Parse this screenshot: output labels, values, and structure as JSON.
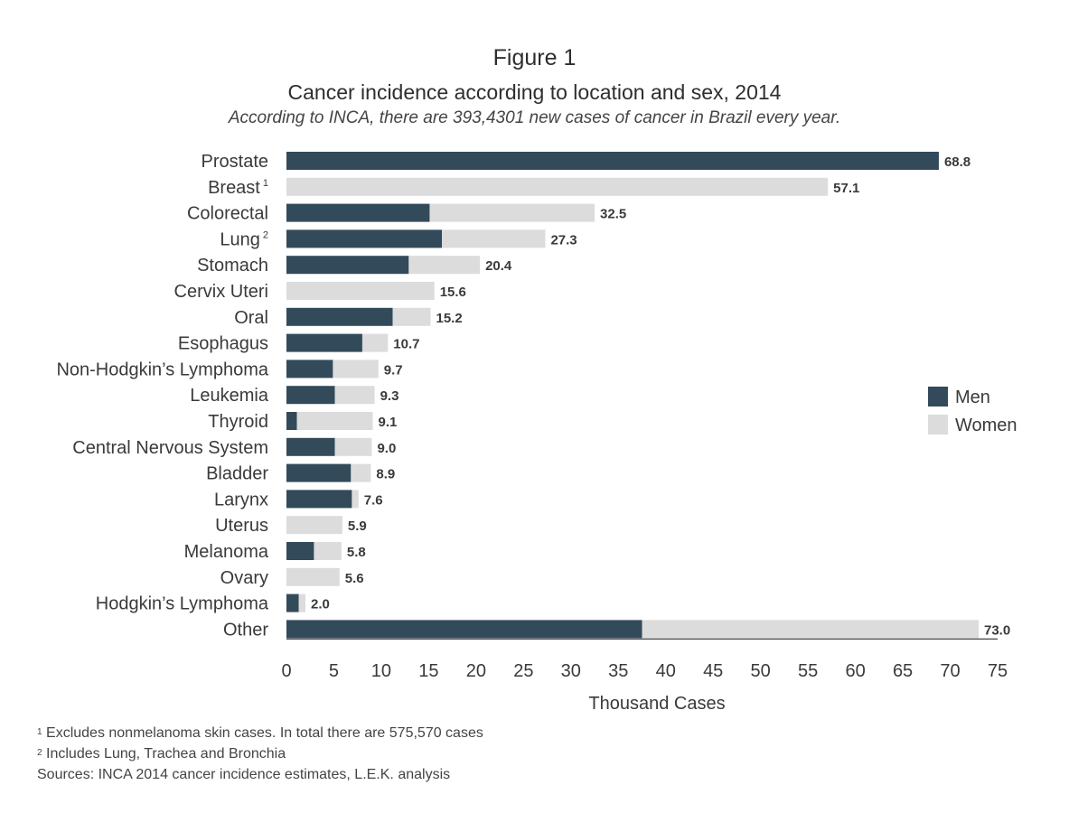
{
  "figure_label": "Figure 1",
  "chart_data": {
    "type": "bar",
    "orientation": "horizontal",
    "stacked": true,
    "title": "Cancer incidence according to location and sex, 2014",
    "subtitle": "According to INCA, there are 393,4301 new cases of cancer in Brazil every year.",
    "xlabel": "Thousand Cases",
    "ylabel": "",
    "xlim": [
      0,
      75
    ],
    "xticks": [
      0,
      5,
      10,
      15,
      20,
      25,
      30,
      35,
      40,
      45,
      50,
      55,
      60,
      65,
      70,
      75
    ],
    "grid": false,
    "legend_position": "right",
    "categories": [
      {
        "name": "Prostate",
        "sup": ""
      },
      {
        "name": "Breast",
        "sup": "1"
      },
      {
        "name": "Colorectal",
        "sup": ""
      },
      {
        "name": "Lung",
        "sup": "2"
      },
      {
        "name": "Stomach",
        "sup": ""
      },
      {
        "name": "Cervix Uteri",
        "sup": ""
      },
      {
        "name": "Oral",
        "sup": ""
      },
      {
        "name": "Esophagus",
        "sup": ""
      },
      {
        "name": "Non-Hodgkin’s Lymphoma",
        "sup": ""
      },
      {
        "name": "Leukemia",
        "sup": ""
      },
      {
        "name": "Thyroid",
        "sup": ""
      },
      {
        "name": "Central Nervous System",
        "sup": ""
      },
      {
        "name": "Bladder",
        "sup": ""
      },
      {
        "name": "Larynx",
        "sup": ""
      },
      {
        "name": "Uterus",
        "sup": ""
      },
      {
        "name": "Melanoma",
        "sup": ""
      },
      {
        "name": "Ovary",
        "sup": ""
      },
      {
        "name": "Hodgkin’s Lymphoma",
        "sup": ""
      },
      {
        "name": "Other",
        "sup": ""
      }
    ],
    "series": [
      {
        "name": "Men",
        "color": "#334a5a",
        "values": [
          68.8,
          0,
          15.1,
          16.4,
          12.9,
          0,
          11.2,
          8.0,
          4.9,
          5.1,
          1.1,
          5.1,
          6.8,
          6.9,
          0,
          2.9,
          0,
          1.3,
          37.5
        ]
      },
      {
        "name": "Women",
        "color": "#dcdcdc",
        "values": [
          0,
          57.1,
          17.4,
          10.9,
          7.5,
          15.6,
          4.0,
          2.7,
          4.8,
          4.2,
          8.0,
          3.9,
          2.1,
          0.7,
          5.9,
          2.9,
          5.6,
          0.7,
          35.5
        ]
      }
    ],
    "totals": [
      "68.8",
      "57.1",
      "32.5",
      "27.3",
      "20.4",
      "15.6",
      "15.2",
      "10.7",
      "9.7",
      "9.3",
      "9.1",
      "9.0",
      "8.9",
      "7.6",
      "5.9",
      "5.8",
      "5.6",
      "2.0",
      "73.0"
    ]
  },
  "footnotes": [
    {
      "sup": "1",
      "text": "Excludes nonmelanoma skin cases. In total there are 575,570 cases"
    },
    {
      "sup": "2",
      "text": "Includes Lung, Trachea and Bronchia"
    },
    {
      "sup": "",
      "text": "Sources: INCA 2014 cancer incidence estimates, L.E.K. analysis"
    }
  ]
}
